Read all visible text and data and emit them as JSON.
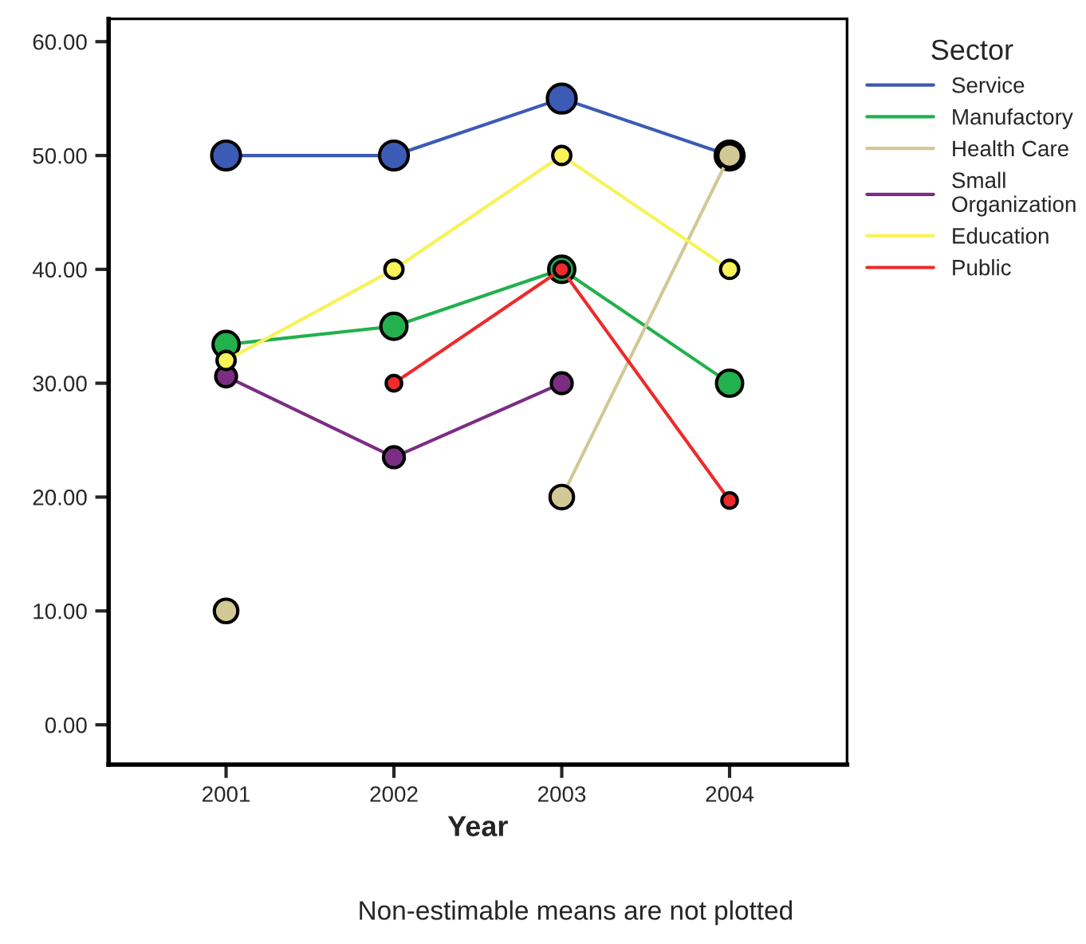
{
  "chart_data": {
    "type": "line",
    "xlabel": "Year",
    "categories": [
      "2001",
      "2002",
      "2003",
      "2004"
    ],
    "series": [
      {
        "name": "Service",
        "color": "#3b5bb5",
        "values": [
          50,
          50,
          55,
          50
        ]
      },
      {
        "name": "Manufactory",
        "color": "#22b14c",
        "values": [
          33.4,
          35,
          40,
          30
        ]
      },
      {
        "name": "Health Care",
        "color": "#d2c896",
        "values": [
          10,
          null,
          20,
          50
        ]
      },
      {
        "name": "Small\nOrganization",
        "color": "#7b2d83",
        "values": [
          30.6,
          23.5,
          30,
          null
        ]
      },
      {
        "name": "Education",
        "color": "#f7f358",
        "values": [
          32,
          40,
          50,
          40
        ]
      },
      {
        "name": "Public",
        "color": "#ee2a2a",
        "values": [
          null,
          30,
          40,
          19.7
        ]
      }
    ],
    "ylim": [
      -3.5,
      62
    ],
    "yticks": [
      {
        "value": 0,
        "label": "0.00"
      },
      {
        "value": 10,
        "label": "10.00"
      },
      {
        "value": 20,
        "label": "20.00"
      },
      {
        "value": 30,
        "label": "30.00"
      },
      {
        "value": 40,
        "label": "40.00"
      },
      {
        "value": 50,
        "label": "50.00"
      },
      {
        "value": 60,
        "label": "60.00"
      }
    ],
    "legend_title": "Sector",
    "legend": "right",
    "marker": "circle",
    "line_style": "solid",
    "grid": false,
    "annotations": [
      "Non-estimable means are not plotted"
    ]
  }
}
